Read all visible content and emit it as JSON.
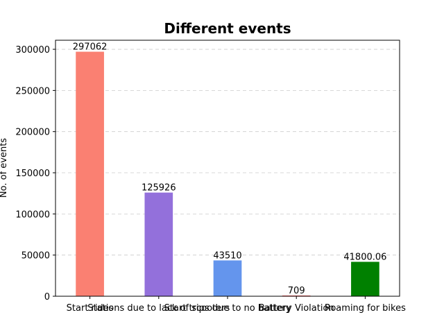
{
  "chart_data": {
    "type": "bar",
    "title": "Different events",
    "xlabel": "",
    "ylabel": "No. of events",
    "categories": [
      "Start rides",
      "Stations due to lack of scooters",
      "Start trips due to no battery",
      "Battery Violation",
      "Roaming for bikes"
    ],
    "values": [
      297062,
      125926,
      43510,
      709,
      41800.06
    ],
    "data_labels": [
      "297062",
      "125926",
      "43510",
      "709",
      "41800.06"
    ],
    "colors": [
      "#fa8072",
      "#9370db",
      "#6495ed",
      "#ff0000",
      "#008000"
    ],
    "ylim": [
      0,
      311000
    ],
    "yticks": [
      0,
      50000,
      100000,
      150000,
      200000,
      250000,
      300000
    ],
    "grid": "y-dashed",
    "legend": "none"
  }
}
